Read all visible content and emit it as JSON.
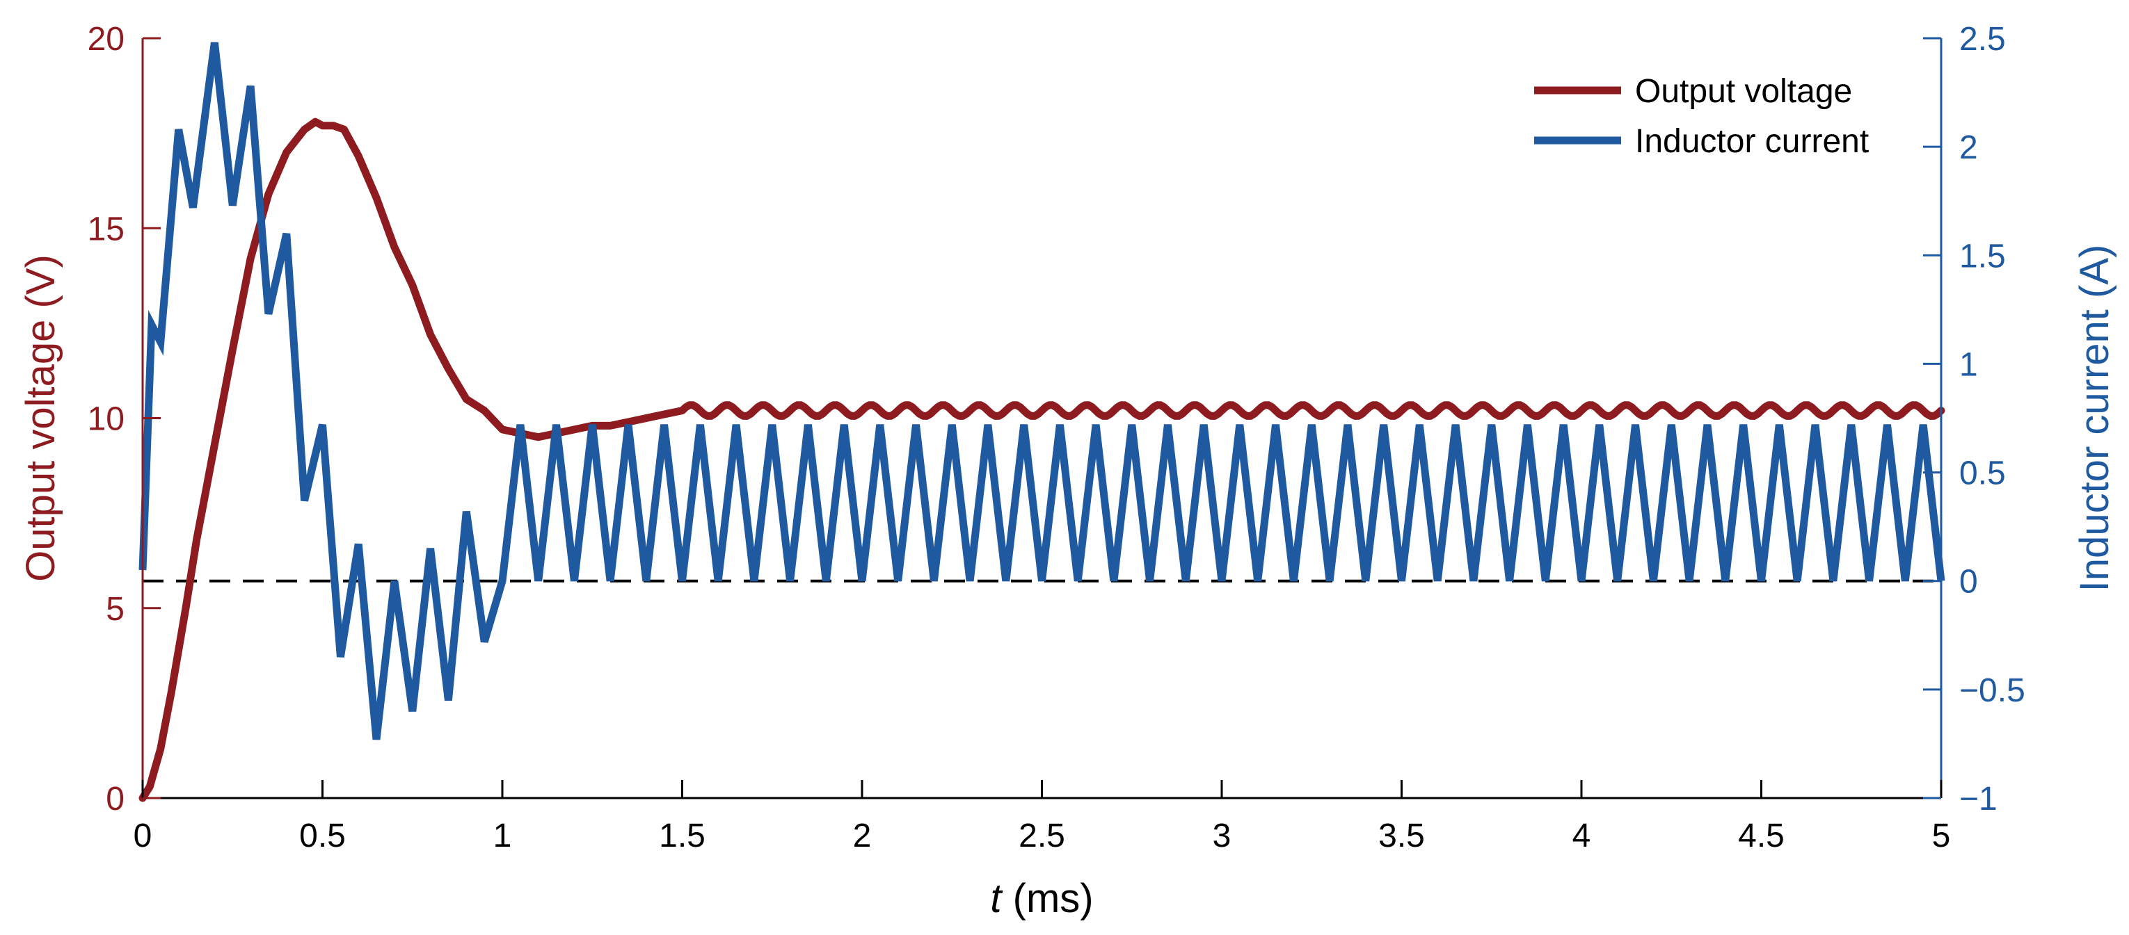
{
  "chart_data": {
    "type": "line",
    "title": "",
    "xlabel_italic": "t",
    "xlabel_unit": " (ms)",
    "ylabel_left": "Output voltage (V)",
    "ylabel_right": "Inductor current (A)",
    "xlim": [
      0,
      5
    ],
    "ylim_left": [
      0,
      20
    ],
    "ylim_right": [
      -1,
      2.5
    ],
    "x_ticks": [
      0,
      0.5,
      1,
      1.5,
      2,
      2.5,
      3,
      3.5,
      4,
      4.5,
      5
    ],
    "x_tick_labels": [
      "0",
      "0.5",
      "1",
      "1.5",
      "2",
      "2.5",
      "3",
      "3.5",
      "4",
      "4.5",
      "5"
    ],
    "y_left_ticks": [
      0,
      5,
      10,
      15,
      20
    ],
    "y_left_tick_labels": [
      "0",
      "5",
      "10",
      "15",
      "20"
    ],
    "y_right_ticks": [
      -1,
      -0.5,
      0,
      0.5,
      1,
      1.5,
      2,
      2.5
    ],
    "y_right_tick_labels": [
      "−1",
      "−0.5",
      "0",
      "0.5",
      "1",
      "1.5",
      "2",
      "2.5"
    ],
    "grid": false,
    "legend_position": "top-right",
    "reference_line": {
      "axis": "right",
      "y": 0,
      "style": "dashed",
      "color": "#000000"
    },
    "series": [
      {
        "name": "Output voltage",
        "axis": "left",
        "color": "#8e1b1f",
        "x": [
          0,
          0.02,
          0.05,
          0.08,
          0.12,
          0.15,
          0.2,
          0.25,
          0.3,
          0.35,
          0.4,
          0.45,
          0.48,
          0.5,
          0.53,
          0.56,
          0.6,
          0.65,
          0.7,
          0.75,
          0.8,
          0.85,
          0.9,
          0.95,
          1.0,
          1.05,
          1.1,
          1.15,
          1.2,
          1.25,
          1.3,
          1.35,
          1.4,
          1.45,
          1.5
        ],
        "y": [
          0,
          0.3,
          1.3,
          2.8,
          5.0,
          6.8,
          9.3,
          11.8,
          14.2,
          15.9,
          17.0,
          17.6,
          17.8,
          17.7,
          17.7,
          17.6,
          16.9,
          15.8,
          14.5,
          13.5,
          12.2,
          11.3,
          10.5,
          10.2,
          9.7,
          9.6,
          9.5,
          9.6,
          9.7,
          9.8,
          9.8,
          9.9,
          10.0,
          10.1,
          10.2
        ],
        "steady_state": {
          "from_x": 1.5,
          "to_x": 5.0,
          "mean": 10.2,
          "ripple_amplitude": 0.15,
          "period": 0.1
        }
      },
      {
        "name": "Inductor current",
        "axis": "right",
        "color": "#1f5aa0",
        "x": [
          0,
          0.025,
          0.05,
          0.1,
          0.14,
          0.2,
          0.25,
          0.3,
          0.35,
          0.4,
          0.45,
          0.5,
          0.55,
          0.6,
          0.65,
          0.7,
          0.75,
          0.8,
          0.85,
          0.9,
          0.95,
          1.0
        ],
        "y": [
          0.05,
          1.18,
          1.1,
          2.08,
          1.72,
          2.48,
          1.73,
          2.28,
          1.23,
          1.6,
          0.37,
          0.72,
          -0.35,
          0.17,
          -0.73,
          0.0,
          -0.6,
          0.15,
          -0.55,
          0.32,
          -0.28,
          0.0
        ],
        "steady_state": {
          "from_x": 1.0,
          "to_x": 5.0,
          "min": 0.0,
          "max": 0.72,
          "period": 0.1
        }
      }
    ]
  }
}
